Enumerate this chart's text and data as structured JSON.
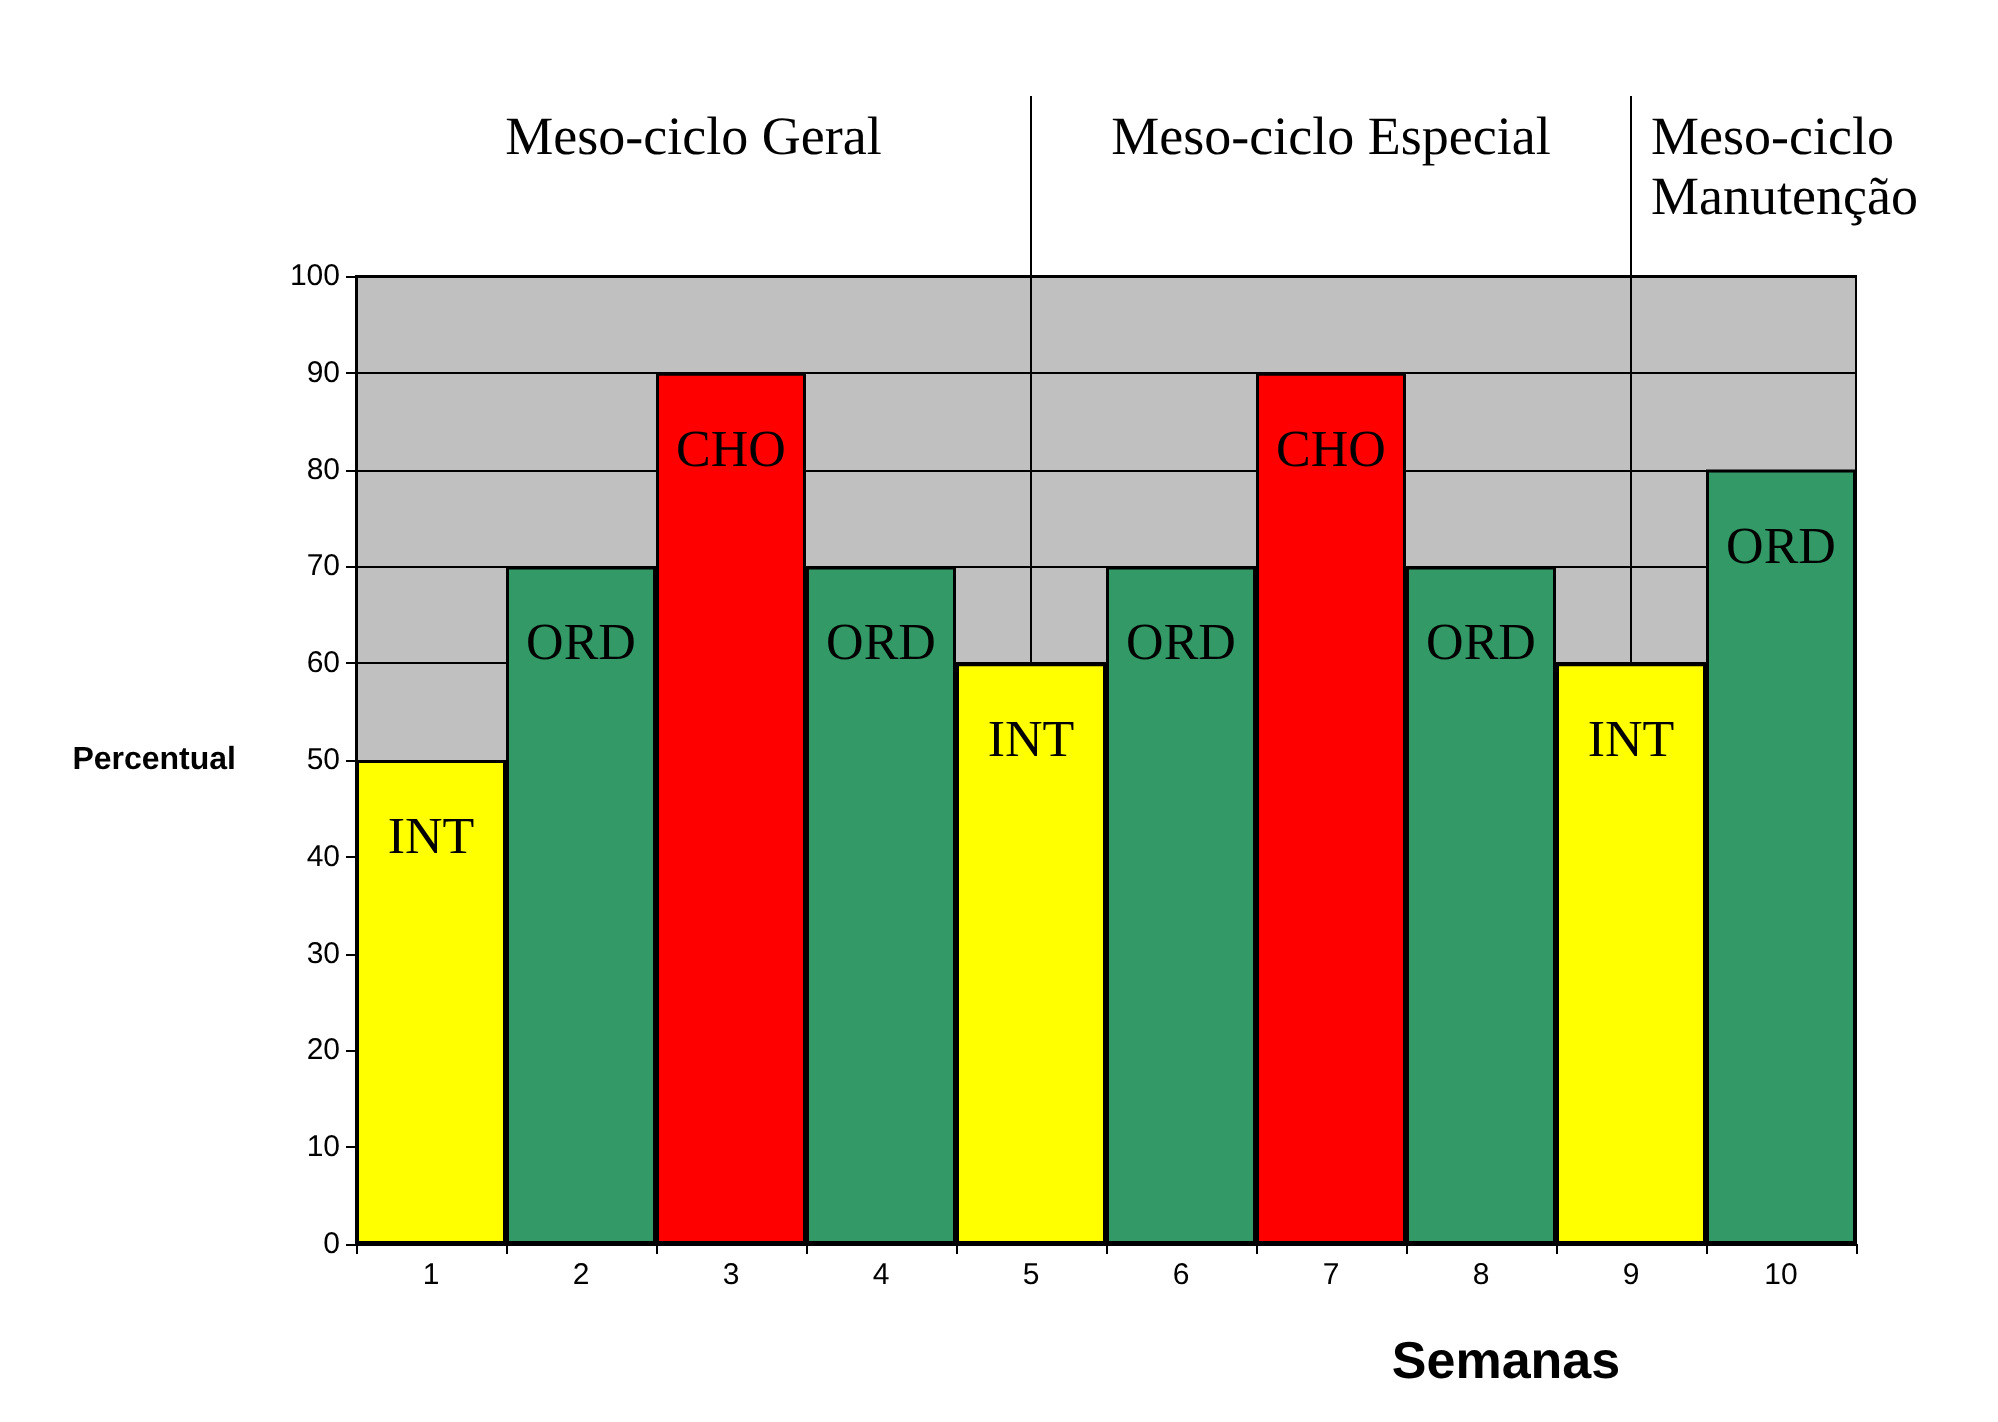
{
  "chart_data": {
    "type": "bar",
    "xlabel": "Semanas",
    "ylabel": "Percentual",
    "categories": [
      "1",
      "2",
      "3",
      "4",
      "5",
      "6",
      "7",
      "8",
      "9",
      "10"
    ],
    "values": [
      50,
      70,
      90,
      70,
      60,
      70,
      90,
      70,
      60,
      80
    ],
    "colors": [
      "#ffff00",
      "#339966",
      "#ff0000",
      "#339966",
      "#ffff00",
      "#339966",
      "#ff0000",
      "#339966",
      "#ffff00",
      "#339966"
    ],
    "value_labels": [
      "INT",
      "ORD",
      "CHO",
      "ORD",
      "INT",
      "ORD",
      "CHO",
      "ORD",
      "INT",
      "ORD"
    ],
    "ref_lines": [
      {
        "axis": "x",
        "value": "5"
      },
      {
        "axis": "x",
        "value": "9"
      }
    ],
    "annotations": [
      "Meso-ciclo Geral",
      "Meso-ciclo Especial",
      "Meso-ciclo\nManutenção"
    ],
    "ylim": [
      0,
      100
    ],
    "yticks": [
      0,
      10,
      20,
      30,
      40,
      50,
      60,
      70,
      80,
      90,
      100
    ],
    "grid": "y"
  }
}
